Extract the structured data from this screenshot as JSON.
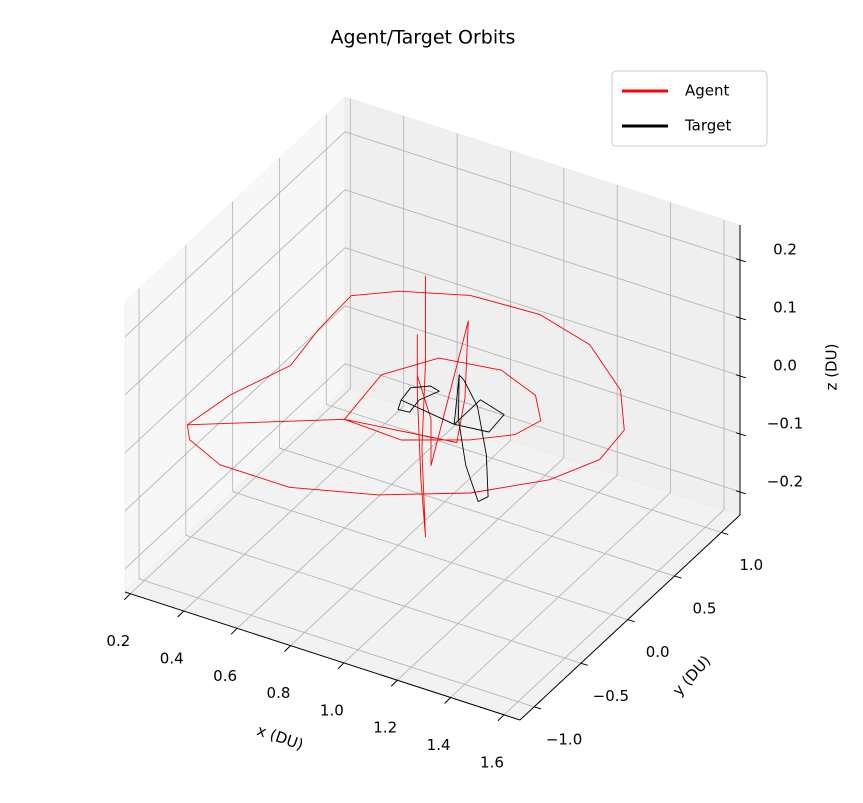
{
  "chart_data": {
    "type": "line3d",
    "title": "Agent/Target Orbits",
    "xlabel": "x (DU)",
    "ylabel": "y (DU)",
    "zlabel": "z (DU)",
    "xlim": [
      0.18,
      1.66
    ],
    "ylim": [
      -1.15,
      1.2
    ],
    "zlim": [
      -0.24,
      0.26
    ],
    "xticks": [
      0.2,
      0.4,
      0.6,
      0.8,
      {
        "value": 1.0,
        "label": "1.0"
      },
      1.2,
      1.4,
      1.6
    ],
    "yticks": [
      {
        "value": -1.0,
        "label": "−1.0"
      },
      {
        "value": -0.5,
        "label": "−0.5"
      },
      {
        "value": 0,
        "label": "0.0"
      },
      0.5,
      {
        "value": 1.0,
        "label": "1.0"
      }
    ],
    "zticks": [
      {
        "value": -0.2,
        "label": "−0.2"
      },
      {
        "value": -0.1,
        "label": "−0.1"
      },
      {
        "value": 0,
        "label": "0.0"
      },
      0.1,
      0.2
    ],
    "grid": true,
    "legend": "upper right",
    "series": [
      {
        "name": "Agent",
        "color": "#ff0000",
        "x": [
          0.92,
          0.92,
          0.91,
          0.92,
          0.91,
          0.9,
          0.9,
          0.9,
          0.93,
          0.93,
          1.07,
          1.05,
          1.02,
          0.69,
          0.66,
          0.77,
          0.98,
          1.15,
          1.24,
          1.21,
          1.1,
          0.91,
          0.69,
          0.27,
          0.3,
          0.38,
          0.35,
          0.34,
          0.46,
          0.67,
          0.92,
          1.15,
          1.37,
          1.5,
          1.52,
          1.44,
          1.26,
          1.01,
          0.74,
          0.48,
          0.32,
          0.27
        ],
        "y": [
          -0.05,
          -0.05,
          -0.06,
          -0.05,
          -0.07,
          -0.08,
          -0.08,
          -0.08,
          -0.02,
          -0.02,
          -0.02,
          0.0,
          0.0,
          -0.26,
          0.22,
          0.52,
          0.59,
          0.47,
          0.27,
          0.08,
          -0.09,
          -0.28,
          -0.26,
          -0.74,
          -0.37,
          0.05,
          0.43,
          0.81,
          0.98,
          1.14,
          1.17,
          1.05,
          0.75,
          0.42,
          0.1,
          -0.21,
          -0.54,
          -0.81,
          -0.99,
          -0.99,
          -0.86,
          -0.74
        ],
        "z": [
          0.25,
          0.1,
          -0.05,
          -0.2,
          -0.1,
          0.05,
          0.15,
          0.08,
          0.0,
          -0.08,
          0.19,
          0.05,
          -0.03,
          0,
          0,
          0,
          0,
          0,
          0,
          0,
          0,
          0,
          0,
          0,
          0,
          0,
          0,
          0,
          0,
          0,
          0,
          0,
          0,
          0,
          0,
          0,
          0,
          0,
          0,
          0,
          0,
          0
        ]
      },
      {
        "name": "Target",
        "color": "#000000",
        "x": [
          0.79,
          0.78,
          0.83,
          0.87,
          0.84,
          0.85,
          0.81,
          0.79,
          1.01,
          1.01,
          1.12,
          1.13,
          1.01,
          1.05,
          1.04,
          1.06,
          1.1,
          1.13,
          1.12,
          1.09,
          1.06,
          1.05
        ],
        "y": [
          0.06,
          0.19,
          0.26,
          0.24,
          0.11,
          -0.02,
          -0.03,
          0.06,
          0.0,
          0.28,
          0.22,
          0.03,
          0.0,
          -0.06,
          -0.04,
          -0.02,
          0.0,
          0.02,
          0.03,
          0.02,
          -0.04,
          -0.06
        ],
        "z": [
          0,
          0,
          0,
          0,
          0,
          0,
          0,
          0,
          0,
          0,
          0,
          0,
          0,
          0.1,
          0.02,
          -0.06,
          -0.12,
          -0.11,
          -0.04,
          0.04,
          0.09,
          0.1
        ]
      }
    ]
  }
}
